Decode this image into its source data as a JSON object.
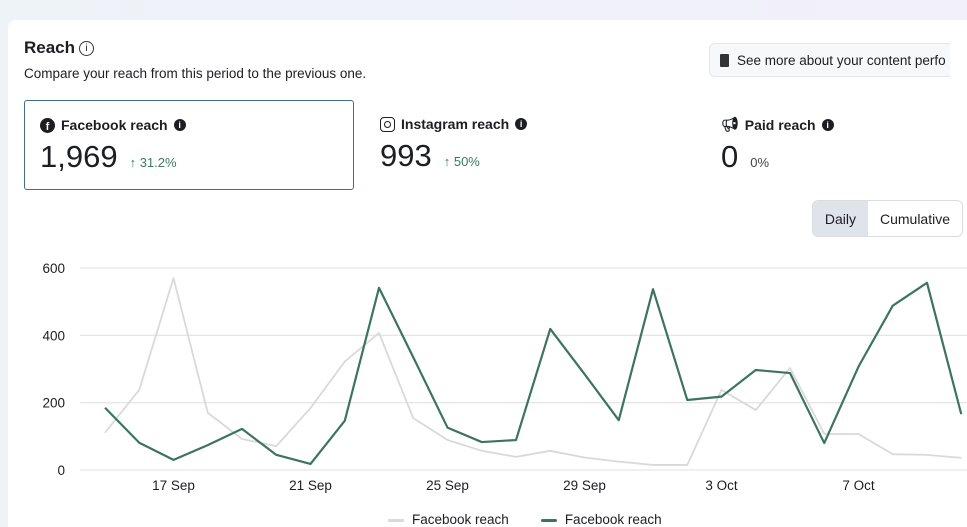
{
  "header": {
    "title": "Reach",
    "subtitle": "Compare your reach from this period to the previous one.",
    "see_more": "See more about your content perfo"
  },
  "metrics": [
    {
      "label": "Facebook reach",
      "value": "1,969",
      "change": "↑ 31.2%",
      "icon": "facebook-icon",
      "selected": true
    },
    {
      "label": "Instagram reach",
      "value": "993",
      "change": "↑ 50%",
      "icon": "instagram-icon"
    },
    {
      "label": "Paid reach",
      "value": "0",
      "change": "0%",
      "icon": "megaphone-icon"
    }
  ],
  "toggle": {
    "daily": "Daily",
    "cumulative": "Cumulative"
  },
  "colors": {
    "current": "#3d7461",
    "previous": "#d9d9d9",
    "selected_border": "#3f6f8f"
  },
  "chart_data": {
    "type": "line",
    "x": [
      "15 Sep",
      "16 Sep",
      "17 Sep",
      "18 Sep",
      "19 Sep",
      "20 Sep",
      "21 Sep",
      "22 Sep",
      "23 Sep",
      "24 Sep",
      "25 Sep",
      "26 Sep",
      "27 Sep",
      "28 Sep",
      "29 Sep",
      "30 Sep",
      "1 Oct",
      "2 Oct",
      "3 Oct",
      "4 Oct",
      "5 Oct",
      "6 Oct",
      "7 Oct",
      "8 Oct",
      "9 Oct",
      "10 Oct"
    ],
    "x_ticks": [
      "17 Sep",
      "21 Sep",
      "25 Sep",
      "29 Sep",
      "3 Oct",
      "7 Oct"
    ],
    "y_ticks": [
      "0",
      "200",
      "400",
      "600"
    ],
    "ylim": [
      0,
      600
    ],
    "grid": true,
    "legend_position": "bottom",
    "series": [
      {
        "name": "Facebook reach",
        "role": "previous",
        "values": [
          111,
          238,
          570,
          170,
          92,
          71,
          184,
          322,
          407,
          154,
          89,
          57,
          39,
          57,
          37,
          25,
          15,
          15,
          238,
          178,
          303,
          107,
          107,
          47,
          45,
          36
        ]
      },
      {
        "name": "Facebook reach",
        "role": "current",
        "values": [
          185,
          81,
          30,
          74,
          122,
          45,
          18,
          146,
          541,
          335,
          126,
          83,
          89,
          419,
          285,
          148,
          537,
          208,
          218,
          297,
          288,
          80,
          307,
          488,
          556,
          166
        ]
      }
    ]
  }
}
